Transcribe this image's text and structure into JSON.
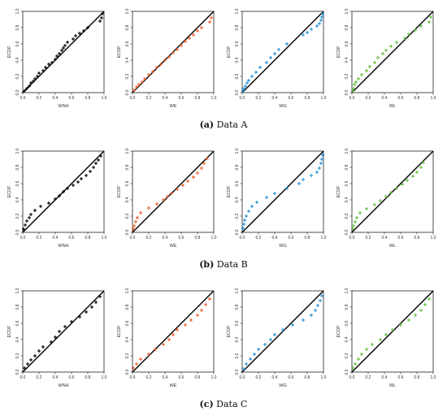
{
  "captions": [
    {
      "letter": "(a)",
      "text": "Data A"
    },
    {
      "letter": "(b)",
      "text": "Data B"
    },
    {
      "letter": "(c)",
      "text": "Data C"
    }
  ],
  "chart_data": [
    {
      "type": "scatter",
      "row": 0,
      "col": 0,
      "xlabel": "WNH",
      "ylabel": "ECDF",
      "xlim": [
        0,
        1
      ],
      "ylim": [
        0,
        1
      ],
      "xticks": [
        "0.0",
        "0.2",
        "0.4",
        "0.6",
        "0.8",
        "1.0"
      ],
      "yticks": [
        "0.0",
        "0.2",
        "0.4",
        "0.6",
        "0.8",
        "1.0"
      ],
      "color": "#000000",
      "reference_line": [
        [
          0,
          0
        ],
        [
          1,
          1
        ]
      ],
      "x": [
        0.02,
        0.05,
        0.08,
        0.1,
        0.13,
        0.15,
        0.18,
        0.2,
        0.25,
        0.28,
        0.32,
        0.36,
        0.4,
        0.42,
        0.45,
        0.48,
        0.5,
        0.52,
        0.55,
        0.62,
        0.65,
        0.7,
        0.75,
        0.8,
        0.95,
        0.97,
        0.98
      ],
      "y": [
        0.02,
        0.05,
        0.08,
        0.12,
        0.14,
        0.17,
        0.2,
        0.24,
        0.27,
        0.31,
        0.35,
        0.37,
        0.41,
        0.45,
        0.48,
        0.52,
        0.55,
        0.58,
        0.62,
        0.66,
        0.7,
        0.73,
        0.76,
        0.8,
        0.88,
        0.92,
        0.97
      ]
    },
    {
      "type": "scatter",
      "row": 0,
      "col": 1,
      "xlabel": "WE",
      "ylabel": "ECDF",
      "xlim": [
        0,
        1
      ],
      "ylim": [
        0,
        1
      ],
      "xticks": [
        "0.0",
        "0.2",
        "0.4",
        "0.6",
        "0.8",
        "1.0"
      ],
      "yticks": [
        "0.0",
        "0.2",
        "0.4",
        "0.6",
        "0.8",
        "1.0"
      ],
      "color": "#f05a28",
      "reference_line": [
        [
          0,
          0
        ],
        [
          1,
          1
        ]
      ],
      "x": [
        0.02,
        0.05,
        0.08,
        0.12,
        0.15,
        0.2,
        0.25,
        0.3,
        0.35,
        0.4,
        0.45,
        0.5,
        0.55,
        0.6,
        0.65,
        0.7,
        0.75,
        0.8,
        0.85,
        0.95,
        0.97
      ],
      "y": [
        0.03,
        0.07,
        0.1,
        0.13,
        0.17,
        0.22,
        0.26,
        0.31,
        0.35,
        0.4,
        0.44,
        0.49,
        0.53,
        0.58,
        0.63,
        0.67,
        0.71,
        0.76,
        0.8,
        0.87,
        0.92
      ]
    },
    {
      "type": "scatter",
      "row": 0,
      "col": 2,
      "xlabel": "WG",
      "ylabel": "ECDF",
      "xlim": [
        0,
        1
      ],
      "ylim": [
        0,
        1
      ],
      "xticks": [
        "0.0",
        "0.2",
        "0.4",
        "0.6",
        "0.8",
        "1.0"
      ],
      "yticks": [
        "0.0",
        "0.2",
        "0.4",
        "0.6",
        "0.8",
        "1.0"
      ],
      "color": "#1f8fd6",
      "reference_line": [
        [
          0,
          0
        ],
        [
          1,
          1
        ]
      ],
      "x": [
        0.01,
        0.02,
        0.04,
        0.06,
        0.08,
        0.12,
        0.17,
        0.22,
        0.3,
        0.35,
        0.4,
        0.45,
        0.55,
        0.75,
        0.8,
        0.85,
        0.92,
        0.95,
        0.97,
        0.98,
        0.99
      ],
      "y": [
        0.02,
        0.05,
        0.08,
        0.12,
        0.15,
        0.2,
        0.25,
        0.31,
        0.37,
        0.43,
        0.48,
        0.53,
        0.6,
        0.71,
        0.74,
        0.78,
        0.82,
        0.85,
        0.89,
        0.93,
        0.97
      ]
    },
    {
      "type": "scatter",
      "row": 0,
      "col": 3,
      "xlabel": "WL",
      "ylabel": "ECDF",
      "xlim": [
        0,
        1
      ],
      "ylim": [
        0,
        1
      ],
      "xticks": [
        "0.0",
        "0.2",
        "0.4",
        "0.6",
        "0.8",
        "1.0"
      ],
      "yticks": [
        "0.0",
        "0.2",
        "0.4",
        "0.6",
        "0.8",
        "1.0"
      ],
      "color": "#5cbf3a",
      "reference_line": [
        [
          0,
          0
        ],
        [
          1,
          1
        ]
      ],
      "x": [
        0.01,
        0.02,
        0.03,
        0.05,
        0.08,
        0.12,
        0.18,
        0.22,
        0.28,
        0.32,
        0.38,
        0.42,
        0.48,
        0.55,
        0.65,
        0.7,
        0.78,
        0.85,
        0.95,
        0.97
      ],
      "y": [
        0.02,
        0.05,
        0.1,
        0.13,
        0.17,
        0.22,
        0.27,
        0.32,
        0.37,
        0.43,
        0.48,
        0.52,
        0.57,
        0.62,
        0.67,
        0.72,
        0.77,
        0.82,
        0.87,
        0.93
      ]
    },
    {
      "type": "scatter",
      "row": 1,
      "col": 0,
      "xlabel": "WNH",
      "ylabel": "ECDF",
      "xlim": [
        0,
        1
      ],
      "ylim": [
        0,
        1
      ],
      "xticks": [
        "0.0",
        "0.2",
        "0.4",
        "0.6",
        "0.8",
        "1.0"
      ],
      "yticks": [
        "0.0",
        "0.2",
        "0.4",
        "0.6",
        "0.8",
        "1.0"
      ],
      "color": "#000000",
      "reference_line": [
        [
          0,
          0
        ],
        [
          1,
          1
        ]
      ],
      "x": [
        0.01,
        0.03,
        0.05,
        0.08,
        0.1,
        0.15,
        0.22,
        0.32,
        0.4,
        0.45,
        0.5,
        0.55,
        0.62,
        0.68,
        0.72,
        0.78,
        0.83,
        0.87,
        0.9,
        0.93,
        0.96
      ],
      "y": [
        0.04,
        0.09,
        0.14,
        0.18,
        0.22,
        0.27,
        0.32,
        0.36,
        0.41,
        0.45,
        0.5,
        0.54,
        0.58,
        0.62,
        0.66,
        0.7,
        0.75,
        0.8,
        0.85,
        0.89,
        0.94
      ]
    },
    {
      "type": "scatter",
      "row": 1,
      "col": 1,
      "xlabel": "WE",
      "ylabel": "ECDF",
      "xlim": [
        0,
        1
      ],
      "ylim": [
        0,
        1
      ],
      "xticks": [
        "0.0",
        "0.2",
        "0.4",
        "0.6",
        "0.8",
        "1.0"
      ],
      "yticks": [
        "0.0",
        "0.2",
        "0.4",
        "0.6",
        "0.8",
        "1.0"
      ],
      "color": "#f05a28",
      "reference_line": [
        [
          0,
          0
        ],
        [
          1,
          1
        ]
      ],
      "x": [
        0.01,
        0.02,
        0.04,
        0.06,
        0.1,
        0.2,
        0.3,
        0.38,
        0.43,
        0.48,
        0.55,
        0.62,
        0.68,
        0.75,
        0.8,
        0.85,
        0.88,
        0.92
      ],
      "y": [
        0.04,
        0.08,
        0.13,
        0.18,
        0.24,
        0.3,
        0.35,
        0.4,
        0.44,
        0.48,
        0.53,
        0.58,
        0.63,
        0.68,
        0.73,
        0.79,
        0.85,
        0.91
      ]
    },
    {
      "type": "scatter",
      "row": 1,
      "col": 2,
      "xlabel": "WG",
      "ylabel": "ECDF",
      "xlim": [
        0,
        1
      ],
      "ylim": [
        0,
        1
      ],
      "xticks": [
        "0.0",
        "0.2",
        "0.4",
        "0.6",
        "0.8",
        "1.0"
      ],
      "yticks": [
        "0.0",
        "0.2",
        "0.4",
        "0.6",
        "0.8",
        "1.0"
      ],
      "color": "#1f8fd6",
      "reference_line": [
        [
          0,
          0
        ],
        [
          1,
          1
        ]
      ],
      "x": [
        0.01,
        0.02,
        0.03,
        0.05,
        0.08,
        0.12,
        0.18,
        0.3,
        0.4,
        0.55,
        0.7,
        0.75,
        0.85,
        0.92,
        0.95,
        0.97,
        0.98,
        0.99
      ],
      "y": [
        0.05,
        0.1,
        0.15,
        0.2,
        0.26,
        0.32,
        0.37,
        0.43,
        0.48,
        0.54,
        0.6,
        0.65,
        0.7,
        0.74,
        0.79,
        0.85,
        0.9,
        0.95
      ]
    },
    {
      "type": "scatter",
      "row": 1,
      "col": 3,
      "xlabel": "WL",
      "ylabel": "ECDF",
      "xlim": [
        0,
        1
      ],
      "ylim": [
        0,
        1
      ],
      "xticks": [
        "0.0",
        "0.2",
        "0.4",
        "0.6",
        "0.8",
        "1.0"
      ],
      "yticks": [
        "0.0",
        "0.2",
        "0.4",
        "0.6",
        "0.8",
        "1.0"
      ],
      "color": "#5cbf3a",
      "reference_line": [
        [
          0,
          0
        ],
        [
          1,
          1
        ]
      ],
      "x": [
        0.01,
        0.02,
        0.04,
        0.06,
        0.1,
        0.18,
        0.28,
        0.35,
        0.42,
        0.48,
        0.55,
        0.62,
        0.68,
        0.75,
        0.8,
        0.85,
        0.88
      ],
      "y": [
        0.04,
        0.08,
        0.13,
        0.18,
        0.24,
        0.29,
        0.34,
        0.39,
        0.44,
        0.49,
        0.54,
        0.59,
        0.64,
        0.69,
        0.74,
        0.8,
        0.86
      ]
    },
    {
      "type": "scatter",
      "row": 2,
      "col": 0,
      "xlabel": "WNH",
      "ylabel": "ECDF",
      "xlim": [
        0,
        1
      ],
      "ylim": [
        0,
        1
      ],
      "xticks": [
        "0.0",
        "0.2",
        "0.4",
        "0.6",
        "0.8",
        "1.0"
      ],
      "yticks": [
        "0.0",
        "0.2",
        "0.4",
        "0.6",
        "0.8",
        "1.0"
      ],
      "color": "#000000",
      "reference_line": [
        [
          0,
          0
        ],
        [
          1,
          1
        ]
      ],
      "x": [
        0.02,
        0.06,
        0.1,
        0.15,
        0.2,
        0.25,
        0.35,
        0.4,
        0.45,
        0.52,
        0.6,
        0.7,
        0.78,
        0.85,
        0.9,
        0.95
      ],
      "y": [
        0.05,
        0.1,
        0.15,
        0.2,
        0.26,
        0.31,
        0.37,
        0.43,
        0.5,
        0.56,
        0.62,
        0.68,
        0.74,
        0.8,
        0.86,
        0.93
      ]
    },
    {
      "type": "scatter",
      "row": 2,
      "col": 1,
      "xlabel": "WE",
      "ylabel": "ECDF",
      "xlim": [
        0,
        1
      ],
      "ylim": [
        0,
        1
      ],
      "xticks": [
        "0.0",
        "0.2",
        "0.4",
        "0.6",
        "0.8",
        "1.0"
      ],
      "yticks": [
        "0.0",
        "0.2",
        "0.4",
        "0.6",
        "0.8",
        "1.0"
      ],
      "color": "#f05a28",
      "reference_line": [
        [
          0,
          0
        ],
        [
          1,
          1
        ]
      ],
      "x": [
        0.01,
        0.05,
        0.1,
        0.2,
        0.28,
        0.38,
        0.45,
        0.5,
        0.55,
        0.65,
        0.72,
        0.8,
        0.85,
        0.9,
        0.95
      ],
      "y": [
        0.05,
        0.1,
        0.16,
        0.22,
        0.28,
        0.34,
        0.4,
        0.46,
        0.52,
        0.58,
        0.64,
        0.7,
        0.76,
        0.83,
        0.9
      ]
    },
    {
      "type": "scatter",
      "row": 2,
      "col": 2,
      "xlabel": "WG",
      "ylabel": "ECDF",
      "xlim": [
        0,
        1
      ],
      "ylim": [
        0,
        1
      ],
      "xticks": [
        "0.0",
        "0.2",
        "0.4",
        "0.6",
        "0.8",
        "1.0"
      ],
      "yticks": [
        "0.0",
        "0.2",
        "0.4",
        "0.6",
        "0.8",
        "1.0"
      ],
      "color": "#1f8fd6",
      "reference_line": [
        [
          0,
          0
        ],
        [
          1,
          1
        ]
      ],
      "x": [
        0.02,
        0.05,
        0.1,
        0.15,
        0.2,
        0.28,
        0.35,
        0.4,
        0.5,
        0.62,
        0.75,
        0.85,
        0.9,
        0.93,
        0.96,
        0.98
      ],
      "y": [
        0.04,
        0.1,
        0.16,
        0.22,
        0.28,
        0.34,
        0.4,
        0.46,
        0.52,
        0.58,
        0.64,
        0.7,
        0.76,
        0.82,
        0.88,
        0.94
      ]
    },
    {
      "type": "scatter",
      "row": 2,
      "col": 3,
      "xlabel": "WL",
      "ylabel": "ECDF",
      "xlim": [
        0,
        1
      ],
      "ylim": [
        0,
        1
      ],
      "xticks": [
        "0.0",
        "0.2",
        "0.4",
        "0.6",
        "0.8",
        "1.0"
      ],
      "yticks": [
        "0.0",
        "0.2",
        "0.4",
        "0.6",
        "0.8",
        "1.0"
      ],
      "color": "#5cbf3a",
      "reference_line": [
        [
          0,
          0
        ],
        [
          1,
          1
        ]
      ],
      "x": [
        0.01,
        0.04,
        0.08,
        0.12,
        0.18,
        0.25,
        0.35,
        0.42,
        0.5,
        0.6,
        0.7,
        0.78,
        0.85,
        0.9,
        0.95
      ],
      "y": [
        0.05,
        0.1,
        0.16,
        0.22,
        0.28,
        0.34,
        0.4,
        0.46,
        0.52,
        0.58,
        0.64,
        0.7,
        0.76,
        0.83,
        0.9
      ]
    }
  ]
}
